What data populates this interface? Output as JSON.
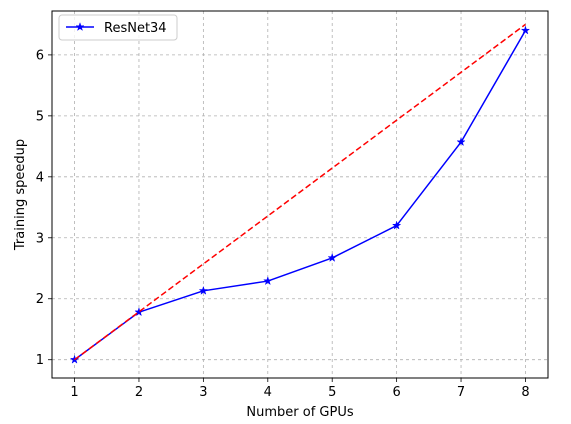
{
  "chart_data": {
    "type": "line",
    "title": "",
    "xlabel": "Number of GPUs",
    "ylabel": "Training speedup",
    "xlim": [
      0.65,
      8.35
    ],
    "ylim": [
      0.7,
      6.72
    ],
    "xticks": [
      1,
      2,
      3,
      4,
      5,
      6,
      7,
      8
    ],
    "yticks": [
      1,
      2,
      3,
      4,
      5,
      6
    ],
    "grid": true,
    "legend_position": "top-left",
    "series": [
      {
        "name": "ResNet34",
        "color": "#0000ff",
        "line_style": "solid",
        "marker": "star",
        "x": [
          1,
          2,
          3,
          4,
          5,
          6,
          7,
          8
        ],
        "y": [
          1.0,
          1.78,
          2.13,
          2.29,
          2.67,
          3.2,
          4.57,
          6.4
        ]
      },
      {
        "color": "#ff0000",
        "line_style": "dashed",
        "marker": "none",
        "x": [
          1,
          8
        ],
        "y": [
          1.0,
          6.5
        ]
      }
    ]
  }
}
